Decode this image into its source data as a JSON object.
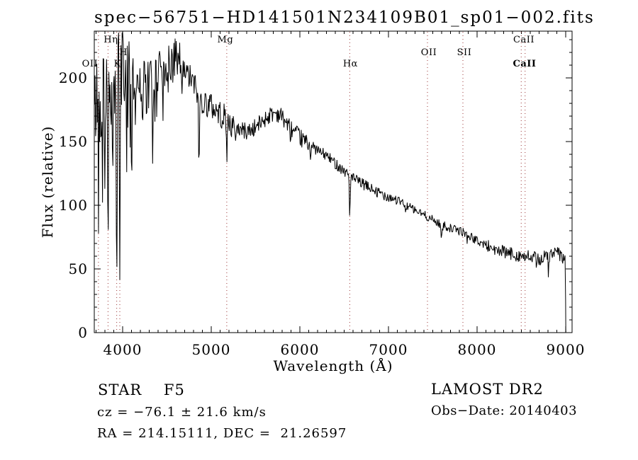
{
  "title": "spec−56751−HD141501N234109B01_sp01−002.fits",
  "info": {
    "class_label": "STAR    F5",
    "survey": "LAMOST DR2",
    "cz": "cz = −76.1 ± 21.6 km/s",
    "obs_date": "Obs−Date: 20140403",
    "coords": "RA = 214.15111, DEC =  21.26597"
  },
  "chart_data": {
    "type": "line",
    "title": "spec−56751−HD141501N234109B01_sp01−002.fits",
    "xlabel": "Wavelength (Å)",
    "ylabel": "Flux (relative)",
    "xlim": [
      3680,
      9072
    ],
    "ylim": [
      0,
      236.7
    ],
    "grid": false,
    "line_color": "#000000",
    "marker_line_color": "#993333",
    "x_ticks": {
      "major": [
        4000,
        5000,
        6000,
        7000,
        8000,
        9000
      ],
      "labels": [
        "4000",
        "5000",
        "6000",
        "7000",
        "8000",
        "9000"
      ],
      "minor_step": 100
    },
    "y_ticks": {
      "major": [
        0,
        50,
        100,
        150,
        200
      ],
      "labels": [
        "0",
        "50",
        "100",
        "150",
        "200"
      ],
      "minor_step": 10
    },
    "dotted_lines": [
      3727,
      3835,
      3933,
      3968,
      5175,
      6563,
      7440,
      7840,
      8498,
      8542
    ],
    "labels": [
      {
        "text": "OII",
        "wavelength": 3727,
        "dx": -12,
        "row": 3,
        "bold": false
      },
      {
        "text": "Hη",
        "wavelength": 3835,
        "dx": 4,
        "row": 1,
        "bold": false
      },
      {
        "text": "K",
        "wavelength": 3933,
        "dx": 1,
        "row": 3,
        "bold": false
      },
      {
        "text": "H",
        "wavelength": 3968,
        "dx": 5,
        "row": 2,
        "bold": false
      },
      {
        "text": "Mg",
        "wavelength": 5175,
        "dx": -2,
        "row": 1,
        "bold": false
      },
      {
        "text": "Hα",
        "wavelength": 6563,
        "dx": 1,
        "row": 3,
        "bold": false
      },
      {
        "text": "OII",
        "wavelength": 7440,
        "dx": 2,
        "row": 2,
        "bold": false
      },
      {
        "text": "SII",
        "wavelength": 7840,
        "dx": 2,
        "row": 2,
        "bold": false
      },
      {
        "text": "CaII",
        "wavelength": 8520,
        "dx": 1,
        "row": 1,
        "bold": false
      },
      {
        "text": "CaII",
        "wavelength": 8520,
        "dx": 2,
        "row": 3,
        "bold": true
      }
    ],
    "spectrum": {
      "continuum": [
        [
          3680,
          170
        ],
        [
          3700,
          182
        ],
        [
          3740,
          188
        ],
        [
          3790,
          192
        ],
        [
          3840,
          200
        ],
        [
          3900,
          200
        ],
        [
          3960,
          205
        ],
        [
          4000,
          212
        ],
        [
          4060,
          198
        ],
        [
          4120,
          196
        ],
        [
          4200,
          200
        ],
        [
          4260,
          198
        ],
        [
          4320,
          200
        ],
        [
          4420,
          210
        ],
        [
          4500,
          215
        ],
        [
          4560,
          216
        ],
        [
          4620,
          210
        ],
        [
          4700,
          204
        ],
        [
          4760,
          200
        ],
        [
          4820,
          193
        ],
        [
          4880,
          183
        ],
        [
          4940,
          180
        ],
        [
          5000,
          178
        ],
        [
          5080,
          173
        ],
        [
          5160,
          168
        ],
        [
          5240,
          162
        ],
        [
          5320,
          160
        ],
        [
          5400,
          158
        ],
        [
          5480,
          160
        ],
        [
          5560,
          165
        ],
        [
          5640,
          170
        ],
        [
          5720,
          173
        ],
        [
          5780,
          171
        ],
        [
          5860,
          164
        ],
        [
          5940,
          157
        ],
        [
          6020,
          152
        ],
        [
          6100,
          148
        ],
        [
          6200,
          143
        ],
        [
          6300,
          139
        ],
        [
          6400,
          133
        ],
        [
          6500,
          127
        ],
        [
          6600,
          121
        ],
        [
          6700,
          117
        ],
        [
          6800,
          113
        ],
        [
          6900,
          110
        ],
        [
          7000,
          107
        ],
        [
          7100,
          104
        ],
        [
          7200,
          100
        ],
        [
          7300,
          96
        ],
        [
          7440,
          91
        ],
        [
          7560,
          86
        ],
        [
          7700,
          82
        ],
        [
          7840,
          79
        ],
        [
          8000,
          72
        ],
        [
          8150,
          67
        ],
        [
          8300,
          63
        ],
        [
          8450,
          61
        ],
        [
          8600,
          59
        ],
        [
          8700,
          58
        ],
        [
          8800,
          60
        ],
        [
          8900,
          63
        ],
        [
          8960,
          59
        ],
        [
          9000,
          56
        ]
      ],
      "absorption_lines": [
        [
          3727,
          100,
          5
        ],
        [
          3770,
          115,
          5
        ],
        [
          3798,
          105,
          5
        ],
        [
          3835,
          88,
          6
        ],
        [
          3889,
          95,
          6
        ],
        [
          3933,
          46,
          7
        ],
        [
          3968,
          57,
          7
        ],
        [
          4045,
          130,
          4
        ],
        [
          4101,
          132,
          7
        ],
        [
          4144,
          155,
          4
        ],
        [
          4226,
          142,
          5
        ],
        [
          4271,
          158,
          4
        ],
        [
          4340,
          122,
          7
        ],
        [
          4383,
          158,
          4
        ],
        [
          4455,
          175,
          4
        ],
        [
          4531,
          180,
          4
        ],
        [
          4668,
          172,
          4
        ],
        [
          4861,
          126,
          7
        ],
        [
          5175,
          143,
          8
        ],
        [
          5270,
          148,
          5
        ],
        [
          5890,
          149,
          6
        ],
        [
          6122,
          135,
          4
        ],
        [
          6563,
          89,
          6
        ],
        [
          6870,
          104,
          6
        ],
        [
          7190,
          93,
          5
        ],
        [
          7600,
          76,
          12
        ],
        [
          7890,
          72,
          5
        ],
        [
          8230,
          57,
          5
        ],
        [
          8540,
          50,
          5
        ],
        [
          8670,
          46,
          4
        ],
        [
          8805,
          44,
          4
        ]
      ],
      "noise_segments": [
        [
          3680,
          4080,
          38
        ],
        [
          4080,
          4650,
          20
        ],
        [
          4650,
          5250,
          11
        ],
        [
          5250,
          6100,
          7
        ],
        [
          6100,
          7100,
          4.5
        ],
        [
          7100,
          8100,
          3.5
        ],
        [
          8100,
          9010,
          5.5
        ]
      ],
      "blue_spike": {
        "lambda_max": 4650,
        "probability": 0.1,
        "max_depth": 55
      },
      "cutoff_wavelength": 8996,
      "sample_step": 6.5,
      "seed": 42
    }
  }
}
